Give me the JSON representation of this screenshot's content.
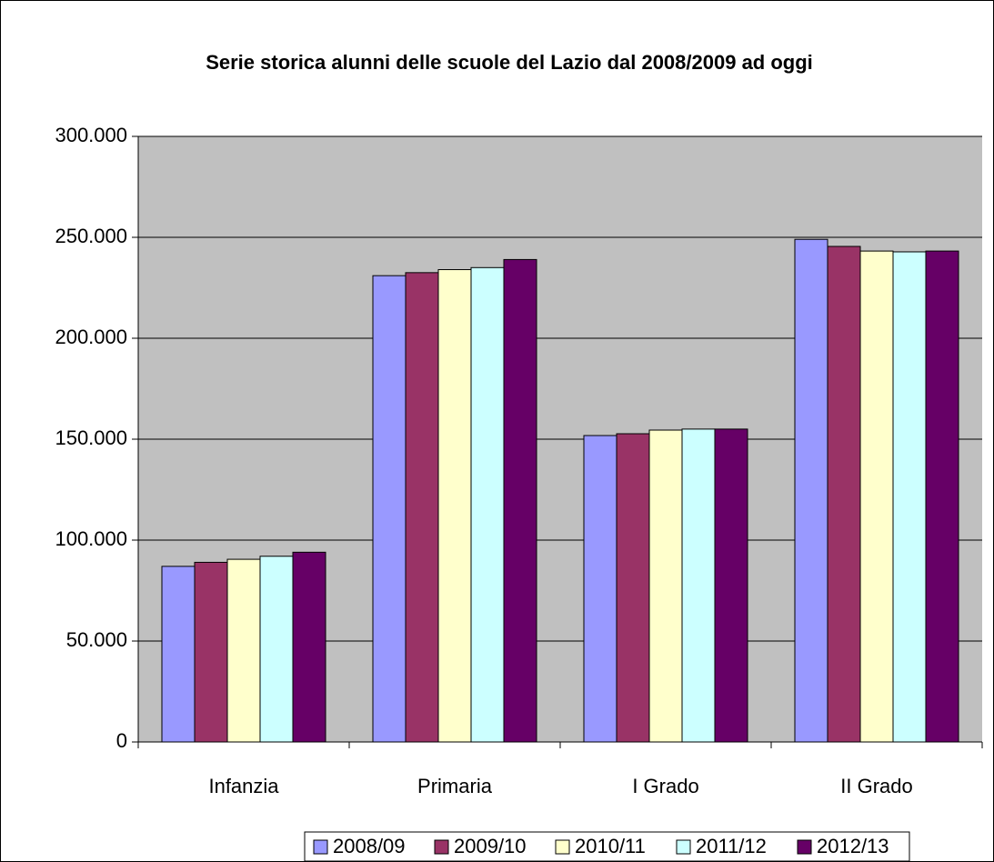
{
  "chart_data": {
    "type": "bar",
    "title": "Serie storica alunni delle scuole del Lazio dal 2008/2009 ad oggi",
    "categories": [
      "Infanzia",
      "Primaria",
      "I Grado",
      "II Grado"
    ],
    "series": [
      {
        "name": "2008/09",
        "color": "#9999ff",
        "values": [
          87000,
          231000,
          151800,
          249000
        ]
      },
      {
        "name": "2009/10",
        "color": "#993366",
        "values": [
          89000,
          232500,
          152700,
          245500
        ]
      },
      {
        "name": "2010/11",
        "color": "#ffffcc",
        "values": [
          90500,
          234000,
          154500,
          243200
        ]
      },
      {
        "name": "2011/12",
        "color": "#ccffff",
        "values": [
          92000,
          235000,
          155000,
          242800
        ]
      },
      {
        "name": "2012/13",
        "color": "#660066",
        "values": [
          94000,
          239000,
          155000,
          243200
        ]
      }
    ],
    "ylim": [
      0,
      300000
    ],
    "yticks": [
      0,
      {
        "value": 50000,
        "label": "50.000"
      },
      {
        "value": 100000,
        "label": "100.000"
      },
      {
        "value": 150000,
        "label": "150.000"
      },
      {
        "value": 200000,
        "label": "200.000"
      },
      {
        "value": 250000,
        "label": "250.000"
      },
      {
        "value": 300000,
        "label": "300.000"
      }
    ],
    "grid": true,
    "legend": "bottom"
  }
}
